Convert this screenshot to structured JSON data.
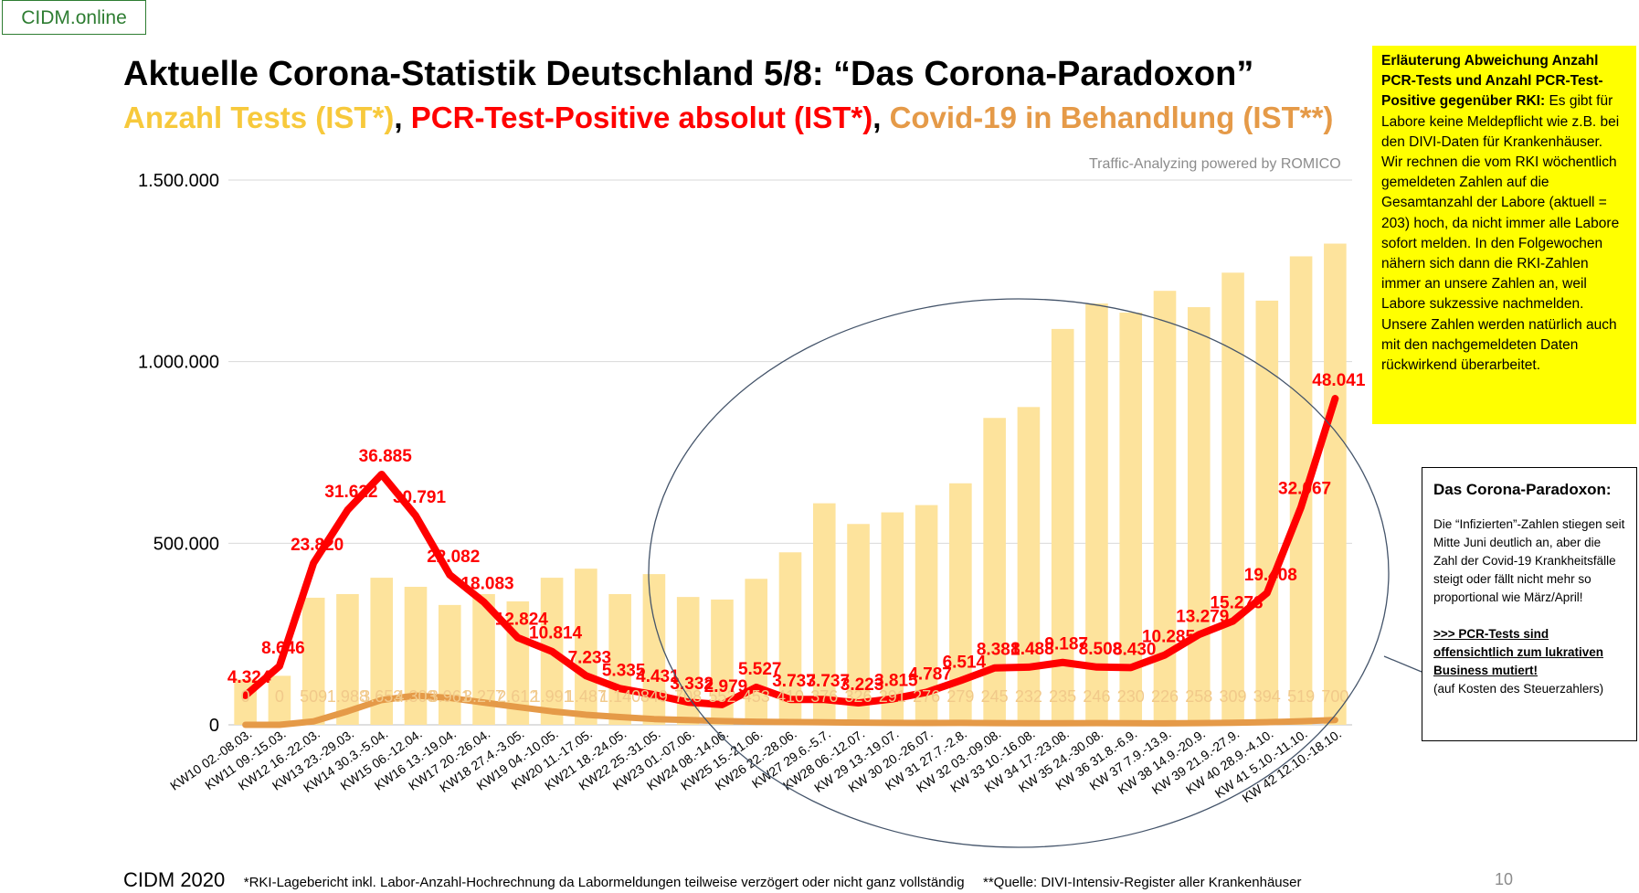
{
  "brand": "CIDM.online",
  "title": "Aktuelle Corona-Statistik Deutschland 5/8: “Das Corona-Paradoxon”",
  "subtitle": {
    "part1": "Anzahl Tests (IST*)",
    "sep1": ", ",
    "part2": "PCR-Test-Positive absolut (IST*)",
    "sep2": ", ",
    "part3": "Covid-19 in Behandlung (IST**)"
  },
  "credit": "Traffic-Analyzing powered by ROMICO",
  "note_yellow": {
    "heading": "Erläuterung Abweichung Anzahl PCR-Tests und Anzahl PCR-Test-Positive gegenüber RKI:",
    "body": "Es gibt für Labore keine Meldepflicht wie z.B. bei den DIVI-Daten für Krankenhäuser. Wir rechnen die vom RKI wöchentlich gemeldeten Zahlen auf die Gesamtanzahl der Labore (aktuell = 203) hoch, da nicht immer alle Labore sofort melden. In den Folgewochen nähern sich dann die RKI-Zahlen immer an unsere Zahlen an, weil Labore sukzessive nachmelden. Unsere Zahlen werden natürlich auch mit den nachgemeldeten Daten rückwirkend überarbeitet."
  },
  "note_box": {
    "heading": "Das Corona-Paradoxon:",
    "body": "Die “Infizierten”-Zahlen stiegen seit Mitte Juni deutlich an, aber die Zahl der Covid-19 Krankheitsfälle steigt oder fällt nicht mehr so proportional wie März/April!",
    "emphasis": ">>> PCR-Tests sind offensichtlich zum lukrativen Business mutiert!",
    "tail": "(auf Kosten des Steuerzahlers)"
  },
  "footer": {
    "brand": "CIDM 2020",
    "note1": "*RKI-Lagebericht inkl. Labor-Anzahl-Hochrechnung da Labormeldungen teilweise verzögert oder nicht ganz vollständig",
    "note2": "**Quelle: DIVI-Intensiv-Register aller Krankenhäuser",
    "page": "10"
  },
  "chart_data": {
    "type": "bar",
    "ylim": [
      0,
      1500000
    ],
    "yticks": [
      0,
      500000,
      1000000,
      1500000
    ],
    "ytick_labels": [
      "0",
      "500.000",
      "1.000.000",
      "1.500.000"
    ],
    "grid": true,
    "categories": [
      "KW10 02.-08.03.",
      "KW11 09.-15.03.",
      "KW12 16.-22.03.",
      "KW13 23.-29.03.",
      "KW14 30.3.-5.04.",
      "KW15 06.-12.04.",
      "KW16 13.-19.04.",
      "KW17 20.-26.04.",
      "KW18 27.4.-3.05.",
      "KW19 04.-10.05.",
      "KW20 11.-17.05.",
      "KW21 18.-24.05.",
      "KW22 25.-31.05.",
      "KW23 01.-07.06.",
      "KW24 08.-14.06.",
      "KW25 15.-21.06.",
      "KW26 22.-28.06.",
      "KW27 29.6.-5.7.",
      "KW28 06.-12.07.",
      "KW 29 13.-19.07.",
      "KW 30 20.-26.07.",
      "KW 31 27.7.-2.8.",
      "KW 32 03.-09.08.",
      "KW 33 10.-16.08.",
      "KW 34 17.-23.08.",
      "KW 35 24.-30.08.",
      "KW 36 31.8.-6.9.",
      "KW 37 7.9.-13.9.",
      "KW 38 14.9.-20.9.",
      "KW 39 21.9.-27.9.",
      "KW 40 28.9.-4.10.",
      "KW 41 5.10.-11.10.",
      "KW 42 12.10.-18.10."
    ],
    "series": [
      {
        "name": "Anzahl Tests (IST*)",
        "kind": "bar",
        "color": "#fde39c",
        "values": [
          125000,
          135000,
          350000,
          360000,
          405000,
          380000,
          330000,
          360000,
          340000,
          405000,
          430000,
          360000,
          415000,
          352000,
          345000,
          402000,
          475000,
          610000,
          553000,
          585000,
          605000,
          665000,
          845000,
          875000,
          1090000,
          1160000,
          1135000,
          1195000,
          1150000,
          1245000,
          1168000,
          1290000,
          1325000
        ]
      },
      {
        "name": "PCR-Test-Positive absolut (IST*)",
        "kind": "line",
        "color": "#ff0000",
        "scale": 18.7,
        "values": [
          4324,
          8646,
          23820,
          31622,
          36885,
          30791,
          22082,
          18083,
          12824,
          10814,
          7233,
          5335,
          4431,
          3332,
          2979,
          5527,
          3737,
          3737,
          3223,
          3815,
          4787,
          6514,
          8381,
          8488,
          9187,
          8508,
          8430,
          10285,
          13279,
          15273,
          19408,
          32067,
          48041
        ],
        "labels": [
          "4.324",
          "8.646",
          "23.820",
          "31.622",
          "36.885",
          "30.791",
          "22.082",
          "18.083",
          "12.824",
          "10.814",
          "7.233",
          "5.335",
          "4.431",
          "3.332",
          "2.979",
          "5.527",
          "3.737",
          "3.737",
          "3.223",
          "3.815",
          "4.787",
          "6.514",
          "8.381",
          "8.488",
          "9.187",
          "8.508",
          "8.430",
          "10.285",
          "13.279",
          "15.273",
          "19.408",
          "32.067",
          "48.041"
        ]
      },
      {
        "name": "Covid-19 in Behandlung (IST**)",
        "kind": "line",
        "color": "#e59a48",
        "scale": 18.7,
        "values": [
          0,
          0,
          509,
          1988,
          3653,
          4303,
          3961,
          3277,
          2612,
          1991,
          1487,
          1140,
          849,
          708,
          552,
          453,
          410,
          376,
          326,
          291,
          276,
          279,
          245,
          232,
          235,
          246,
          230,
          226,
          258,
          309,
          394,
          519,
          700
        ],
        "labels": [
          "0",
          "0",
          "509",
          "1.988",
          "3.653",
          "4.303",
          "3.961",
          "3.277",
          "2.612",
          "1.991",
          "1.487",
          "1.140",
          "849",
          "708",
          "552",
          "453",
          "410",
          "376",
          "326",
          "291",
          "276",
          "279",
          "245",
          "232",
          "235",
          "246",
          "230",
          "226",
          "258",
          "309",
          "394",
          "519",
          "700"
        ]
      }
    ]
  }
}
